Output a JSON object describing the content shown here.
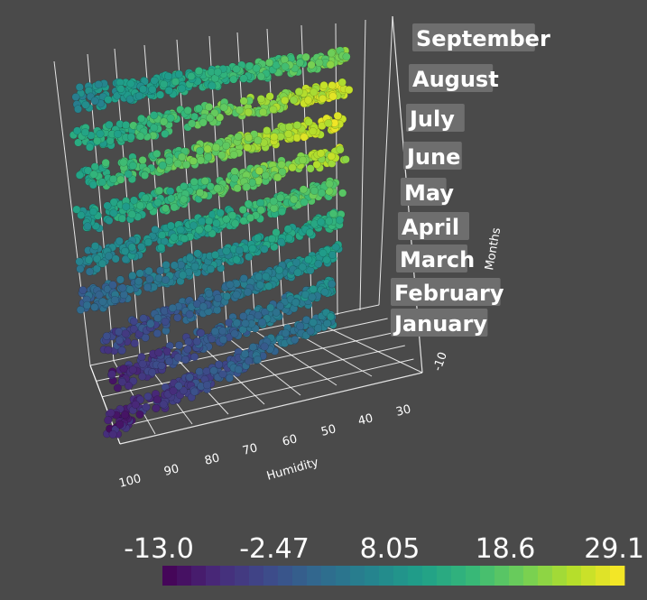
{
  "chart_data": {
    "type": "scatter",
    "title": "",
    "xlabel": "Humidity",
    "zlabel": "Months",
    "x_ticks": [
      "100",
      "90",
      "80",
      "70",
      "60",
      "50",
      "40",
      "30"
    ],
    "temperature_ticks": [
      "-10"
    ],
    "months": [
      "January",
      "February",
      "March",
      "April",
      "May",
      "June",
      "July",
      "August",
      "September"
    ],
    "series": [
      {
        "month": "January",
        "temp_min": -13.0,
        "temp_max": 8.0
      },
      {
        "month": "February",
        "temp_min": -12.0,
        "temp_max": 10.0
      },
      {
        "month": "March",
        "temp_min": -8.0,
        "temp_max": 12.0
      },
      {
        "month": "April",
        "temp_min": -3.0,
        "temp_max": 16.0
      },
      {
        "month": "May",
        "temp_min": 2.0,
        "temp_max": 21.0
      },
      {
        "month": "June",
        "temp_min": 6.0,
        "temp_max": 26.0
      },
      {
        "month": "July",
        "temp_min": 9.0,
        "temp_max": 29.1
      },
      {
        "month": "August",
        "temp_min": 8.0,
        "temp_max": 28.0
      },
      {
        "month": "September",
        "temp_min": 4.0,
        "temp_max": 22.0
      }
    ],
    "colorbar": {
      "min": -13.0,
      "max": 29.1,
      "tick_labels": [
        "-13.0",
        "-2.47",
        "8.05",
        "18.6",
        "29.1"
      ],
      "colormap": "viridis"
    }
  },
  "colors": {
    "background": "#4a4a4a",
    "axis": "#ffffff",
    "label_box": "#6e6e6e"
  }
}
